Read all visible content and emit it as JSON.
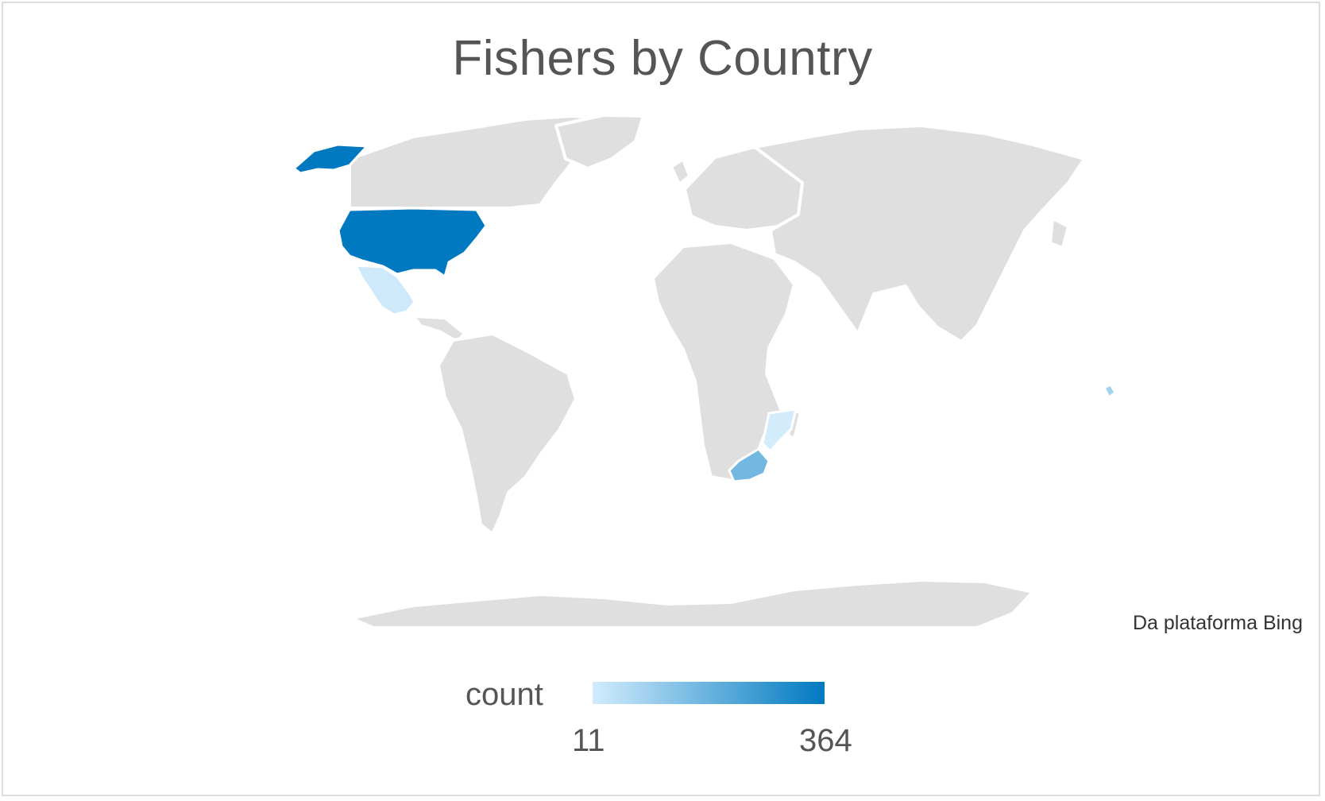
{
  "chart_data": {
    "type": "choropleth",
    "title": "Fishers by Country",
    "measure": "count",
    "range": [
      11,
      364
    ],
    "color_low": "#d2ecfc",
    "color_high": "#0079c1",
    "base_land_color": "#dfdfdf",
    "regions": [
      {
        "name": "United States",
        "value": 364
      },
      {
        "name": "South Africa",
        "value": 170
      },
      {
        "name": "Mexico",
        "value": 20
      },
      {
        "name": "Mozambique",
        "value": 11
      },
      {
        "name": "Fiji",
        "value": 90
      }
    ]
  },
  "legend": {
    "title": "count",
    "min_label": "11",
    "max_label": "364"
  },
  "attribution": "Da plataforma Bing"
}
